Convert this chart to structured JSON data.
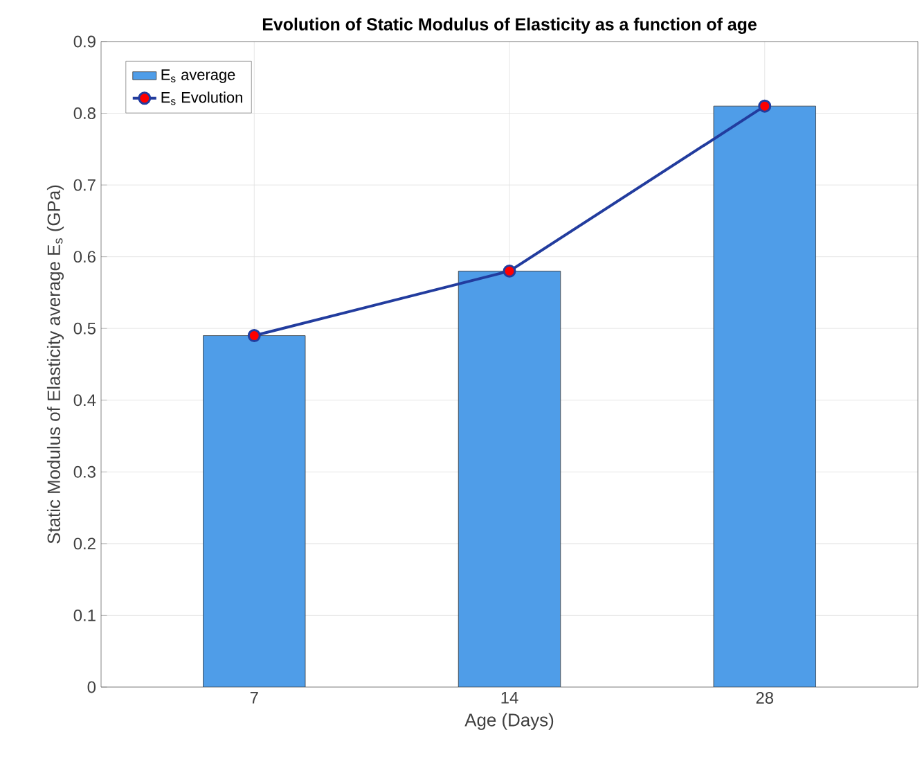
{
  "chart_data": {
    "type": "bar",
    "title": "Evolution of Static Modulus of Elasticity as a function of age",
    "xlabel": "Age (Days)",
    "ylabel": "Static Modulus of Elasticity average E$_{s}$ (GPa)",
    "categories": [
      "7",
      "14",
      "28"
    ],
    "series": [
      {
        "name": "E$_{s}$ average",
        "color": "#4f9de8",
        "values": [
          0.49,
          0.58,
          0.81
        ]
      },
      {
        "name": "E$_{s}$ Evolution",
        "type": "line",
        "color": "#223c9e",
        "marker": "circle",
        "values": [
          0.49,
          0.58,
          0.81
        ]
      }
    ],
    "ylim": [
      0,
      0.9
    ],
    "yticks": [
      0,
      0.1,
      0.2,
      0.3,
      0.4,
      0.5,
      0.6,
      0.7,
      0.8,
      0.9
    ],
    "grid": true,
    "legend": "top left"
  }
}
